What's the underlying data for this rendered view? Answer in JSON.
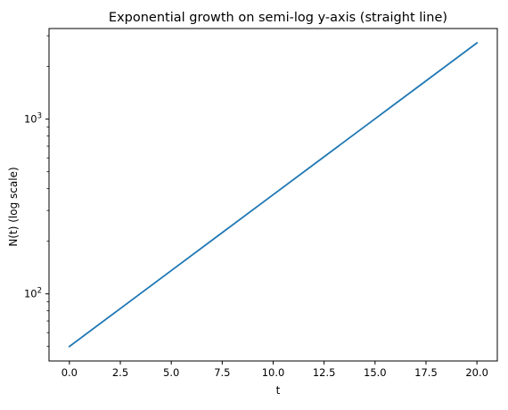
{
  "chart_data": {
    "type": "line",
    "title": "Exponential growth on semi-log y-axis (straight line)",
    "xlabel": "t",
    "ylabel": "N(t) (log scale)",
    "xscale": "linear",
    "yscale": "log",
    "xlim": [
      -1.0,
      21.0
    ],
    "ylim": [
      41.3,
      3300
    ],
    "grid": false,
    "legend": "none",
    "x_ticks": [
      0.0,
      2.5,
      5.0,
      7.5,
      10.0,
      12.5,
      15.0,
      17.5,
      20.0
    ],
    "x_tick_labels": [
      "0.0",
      "2.5",
      "5.0",
      "7.5",
      "10.0",
      "12.5",
      "15.0",
      "17.5",
      "20.0"
    ],
    "y_major_ticks": [
      100,
      1000
    ],
    "y_major_base_labels": [
      "10",
      "10"
    ],
    "y_major_exp_labels": [
      "2",
      "3"
    ],
    "y_minor_ticks": [
      50,
      60,
      70,
      80,
      90,
      200,
      300,
      400,
      500,
      600,
      700,
      800,
      900,
      2000,
      3000
    ],
    "series": [
      {
        "color": "#1f77b4",
        "x": [
          0,
          2.5,
          5,
          7.5,
          10,
          12.5,
          15,
          17.5,
          20
        ],
        "y": [
          50,
          82.4,
          135.9,
          224.1,
          369.5,
          609.2,
          1004.3,
          1655.7,
          2730
        ]
      }
    ]
  }
}
